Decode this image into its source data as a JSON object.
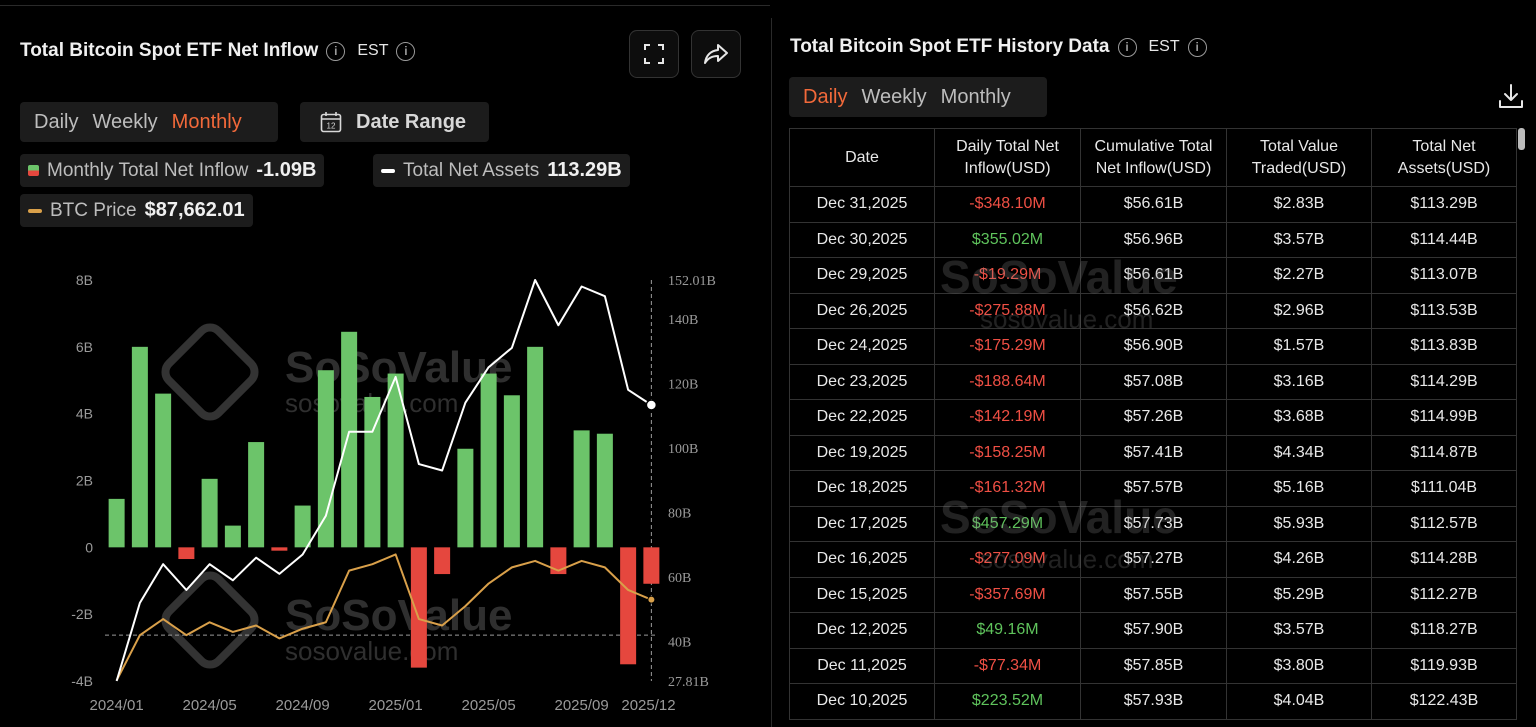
{
  "left": {
    "title": "Total Bitcoin Spot ETF Net Inflow",
    "tz": "EST",
    "icons": {
      "fullscreen": "fullscreen-icon",
      "share": "share-icon"
    },
    "tabs": [
      "Daily",
      "Weekly",
      "Monthly"
    ],
    "active_tab": "Monthly",
    "date_range_label": "Date Range",
    "date_range_icon_text": "12",
    "legend": {
      "inflow_label": "Monthly Total Net Inflow",
      "inflow_value": "-1.09B",
      "assets_label": "Total Net Assets",
      "assets_value": "113.29B",
      "btc_label": "BTC Price",
      "btc_value": "$87,662.01"
    },
    "watermark": {
      "name": "SoSoValue",
      "url": "sosovalue.com"
    }
  },
  "chart_data": {
    "type": "bar",
    "left_axis": {
      "ticks": [
        "8B",
        "6B",
        "4B",
        "2B",
        "0",
        "-2B",
        "-4B"
      ],
      "ylim": [
        -4,
        8
      ]
    },
    "right_axis": {
      "ticks": [
        "152.01B",
        "140B",
        "120B",
        "100B",
        "80B",
        "60B",
        "40B",
        "27.81B"
      ],
      "ylim": [
        27.81,
        152.01
      ]
    },
    "x_ticks": [
      "2024/01",
      "2024/05",
      "2024/09",
      "2025/01",
      "2025/05",
      "2025/09",
      "2025/12"
    ],
    "categories": [
      "2024/01",
      "2024/02",
      "2024/03",
      "2024/04",
      "2024/05",
      "2024/06",
      "2024/07",
      "2024/08",
      "2024/09",
      "2024/10",
      "2024/11",
      "2024/12",
      "2025/01",
      "2025/02",
      "2025/03",
      "2025/04",
      "2025/05",
      "2025/06",
      "2025/07",
      "2025/08",
      "2025/09",
      "2025/10",
      "2025/11",
      "2025/12"
    ],
    "series": [
      {
        "name": "Monthly Total Net Inflow",
        "values": [
          1.45,
          6.0,
          4.6,
          -0.35,
          2.05,
          0.65,
          3.15,
          -0.1,
          1.25,
          5.3,
          6.45,
          4.5,
          5.2,
          -3.6,
          -0.8,
          2.95,
          5.2,
          4.55,
          6.0,
          -0.8,
          3.5,
          3.4,
          -3.5,
          -1.09
        ],
        "colors": {
          "positive": "#6cc46a",
          "negative": "#e5473e"
        }
      },
      {
        "name": "Total Net Assets",
        "values": [
          27.81,
          52,
          64,
          56,
          64,
          59,
          66,
          61,
          67,
          79,
          105,
          105,
          122,
          95,
          93,
          114,
          125,
          131,
          152.01,
          138,
          150,
          147,
          118,
          113.29
        ],
        "color": "#ffffff"
      },
      {
        "name": "BTC Price",
        "values": [
          28,
          42,
          47,
          42,
          46,
          43,
          45,
          41,
          44,
          46,
          62,
          64,
          67,
          47,
          45,
          51,
          58,
          63,
          65,
          62,
          65,
          63,
          56,
          53
        ],
        "color": "#d9a04a"
      }
    ],
    "dashed_reference": {
      "right_axis_value": 42
    }
  },
  "right": {
    "title": "Total Bitcoin Spot ETF History Data",
    "tz": "EST",
    "tabs": [
      "Daily",
      "Weekly",
      "Monthly"
    ],
    "active_tab": "Daily",
    "download_icon": "download-icon",
    "columns": [
      "Date",
      "Daily Total Net Inflow(USD)",
      "Cumulative Total Net Inflow(USD)",
      "Total Value Traded(USD)",
      "Total Net Assets(USD)"
    ],
    "rows": [
      [
        "Dec 31,2025",
        "-$348.10M",
        "$56.61B",
        "$2.83B",
        "$113.29B"
      ],
      [
        "Dec 30,2025",
        "$355.02M",
        "$56.96B",
        "$3.57B",
        "$114.44B"
      ],
      [
        "Dec 29,2025",
        "-$19.29M",
        "$56.61B",
        "$2.27B",
        "$113.07B"
      ],
      [
        "Dec 26,2025",
        "-$275.88M",
        "$56.62B",
        "$2.96B",
        "$113.53B"
      ],
      [
        "Dec 24,2025",
        "-$175.29M",
        "$56.90B",
        "$1.57B",
        "$113.83B"
      ],
      [
        "Dec 23,2025",
        "-$188.64M",
        "$57.08B",
        "$3.16B",
        "$114.29B"
      ],
      [
        "Dec 22,2025",
        "-$142.19M",
        "$57.26B",
        "$3.68B",
        "$114.99B"
      ],
      [
        "Dec 19,2025",
        "-$158.25M",
        "$57.41B",
        "$4.34B",
        "$114.87B"
      ],
      [
        "Dec 18,2025",
        "-$161.32M",
        "$57.57B",
        "$5.16B",
        "$111.04B"
      ],
      [
        "Dec 17,2025",
        "$457.29M",
        "$57.73B",
        "$5.93B",
        "$112.57B"
      ],
      [
        "Dec 16,2025",
        "-$277.09M",
        "$57.27B",
        "$4.26B",
        "$114.28B"
      ],
      [
        "Dec 15,2025",
        "-$357.69M",
        "$57.55B",
        "$5.29B",
        "$112.27B"
      ],
      [
        "Dec 12,2025",
        "$49.16M",
        "$57.90B",
        "$3.57B",
        "$118.27B"
      ],
      [
        "Dec 11,2025",
        "-$77.34M",
        "$57.85B",
        "$3.80B",
        "$119.93B"
      ],
      [
        "Dec 10,2025",
        "$223.52M",
        "$57.93B",
        "$4.04B",
        "$122.43B"
      ]
    ]
  }
}
